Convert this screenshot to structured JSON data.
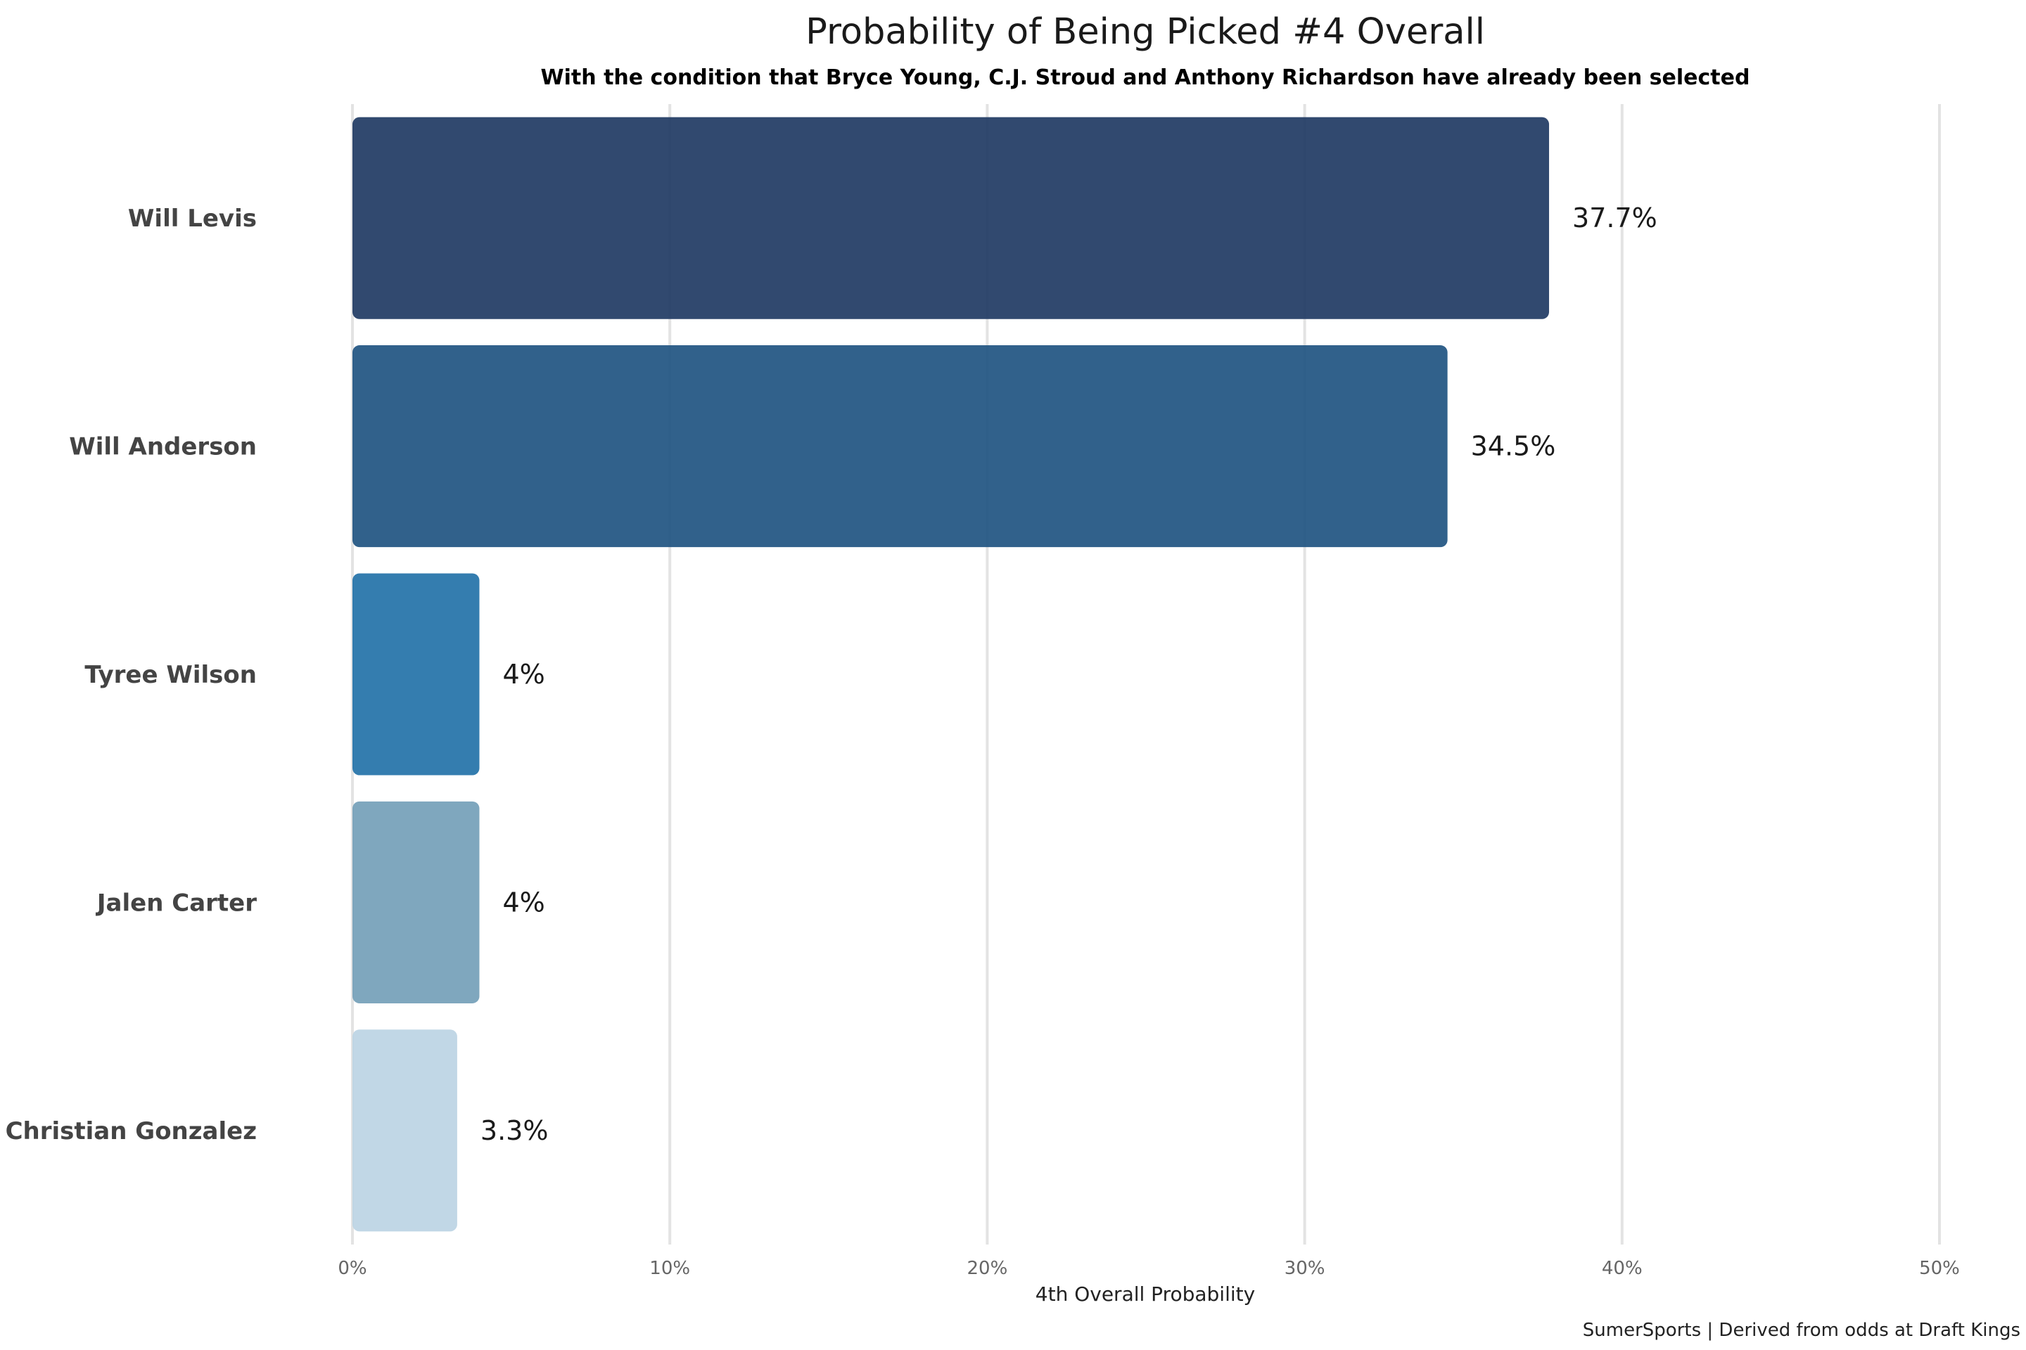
{
  "chart_data": {
    "type": "bar",
    "orientation": "horizontal",
    "title": "Probability of Being Picked #4 Overall",
    "subtitle": "With the condition that Bryce Young, C.J. Stroud and Anthony Richardson have already been selected",
    "xlabel": "4th Overall Probability",
    "ylabel": "",
    "caption": "SumerSports | Derived from odds at Draft Kings",
    "xlim": [
      0,
      50
    ],
    "x_ticks": [
      0,
      10,
      20,
      30,
      40,
      50
    ],
    "x_tick_labels": [
      "0%",
      "10%",
      "20%",
      "30%",
      "40%",
      "50%"
    ],
    "grid": "vertical major",
    "categories": [
      "Will Levis",
      "Will Anderson",
      "Tyree Wilson",
      "Jalen Carter",
      "Christian Gonzalez"
    ],
    "values": [
      37.7,
      34.5,
      4,
      4,
      3.3
    ],
    "value_labels": [
      "37.7%",
      "34.5%",
      "4%",
      "4%",
      "3.3%"
    ],
    "colors": [
      "#1f3a63",
      "#1f5481",
      "#2372a8",
      "#749fb8",
      "#bcd4e4"
    ]
  }
}
